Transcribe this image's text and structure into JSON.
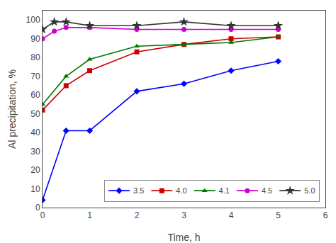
{
  "chart_data": {
    "type": "line",
    "xlabel": "Time, h",
    "ylabel": "Al precipitation, %",
    "xlim": [
      0,
      6
    ],
    "ylim": [
      0,
      105
    ],
    "xticks": [
      0,
      1,
      2,
      3,
      4,
      5,
      6
    ],
    "yticks": [
      0,
      10,
      20,
      30,
      40,
      50,
      60,
      70,
      80,
      90,
      100
    ],
    "grid": false,
    "legend": "lower right",
    "series": [
      {
        "name": "3.5",
        "color": "#0000ff",
        "marker": "diamond",
        "x": [
          0,
          0.5,
          1,
          2,
          3,
          4,
          5
        ],
        "values": [
          4,
          41,
          41,
          62,
          66,
          73,
          78
        ]
      },
      {
        "name": "4.0",
        "color": "#cc0000",
        "marker": "square",
        "x": [
          0,
          0.5,
          1,
          2,
          3,
          4,
          5
        ],
        "values": [
          52,
          65,
          73,
          83,
          87,
          90,
          91
        ]
      },
      {
        "name": "4.1",
        "color": "#007700",
        "marker": "triangle-up",
        "x": [
          0,
          0.5,
          1,
          2,
          3,
          4,
          5
        ],
        "values": [
          55,
          70,
          79,
          86,
          87,
          88,
          91
        ]
      },
      {
        "name": "4.5",
        "color": "#cc00cc",
        "marker": "circle",
        "x": [
          0,
          0.25,
          0.5,
          1,
          2,
          3,
          4,
          5
        ],
        "values": [
          90,
          94,
          96,
          96,
          95,
          95,
          95,
          95
        ]
      },
      {
        "name": "5.0",
        "color": "#333333",
        "marker": "star",
        "x": [
          0,
          0.25,
          0.5,
          1,
          2,
          3,
          4,
          5
        ],
        "values": [
          95,
          99,
          99,
          97,
          97,
          99,
          97,
          97
        ]
      }
    ]
  }
}
